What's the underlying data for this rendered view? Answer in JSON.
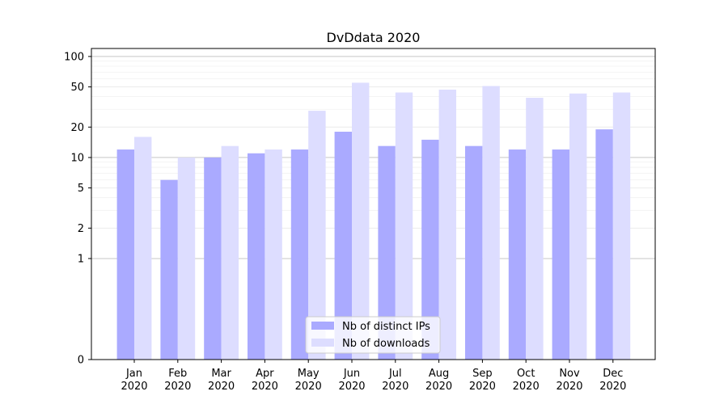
{
  "chart_data": {
    "type": "bar",
    "title": "DvDdata 2020",
    "xlabel": "",
    "ylabel": "",
    "yscale": "symlog",
    "ylim": [
      0,
      120
    ],
    "yticks": [
      0,
      1,
      2,
      5,
      10,
      20,
      50,
      100
    ],
    "grid": true,
    "legend_position": "lower-center",
    "categories": [
      "Jan 2020",
      "Feb 2020",
      "Mar 2020",
      "Apr 2020",
      "May 2020",
      "Jun 2020",
      "Jul 2020",
      "Aug 2020",
      "Sep 2020",
      "Oct 2020",
      "Nov 2020",
      "Dec 2020"
    ],
    "series": [
      {
        "name": "Nb of distinct IPs",
        "color": "#aaaaff",
        "values": [
          12,
          6,
          10,
          11,
          12,
          18,
          13,
          15,
          13,
          12,
          12,
          19
        ]
      },
      {
        "name": "Nb of downloads",
        "color": "#ddddff",
        "values": [
          16,
          10,
          13,
          12,
          29,
          55,
          44,
          47,
          51,
          39,
          43,
          44
        ]
      }
    ]
  }
}
